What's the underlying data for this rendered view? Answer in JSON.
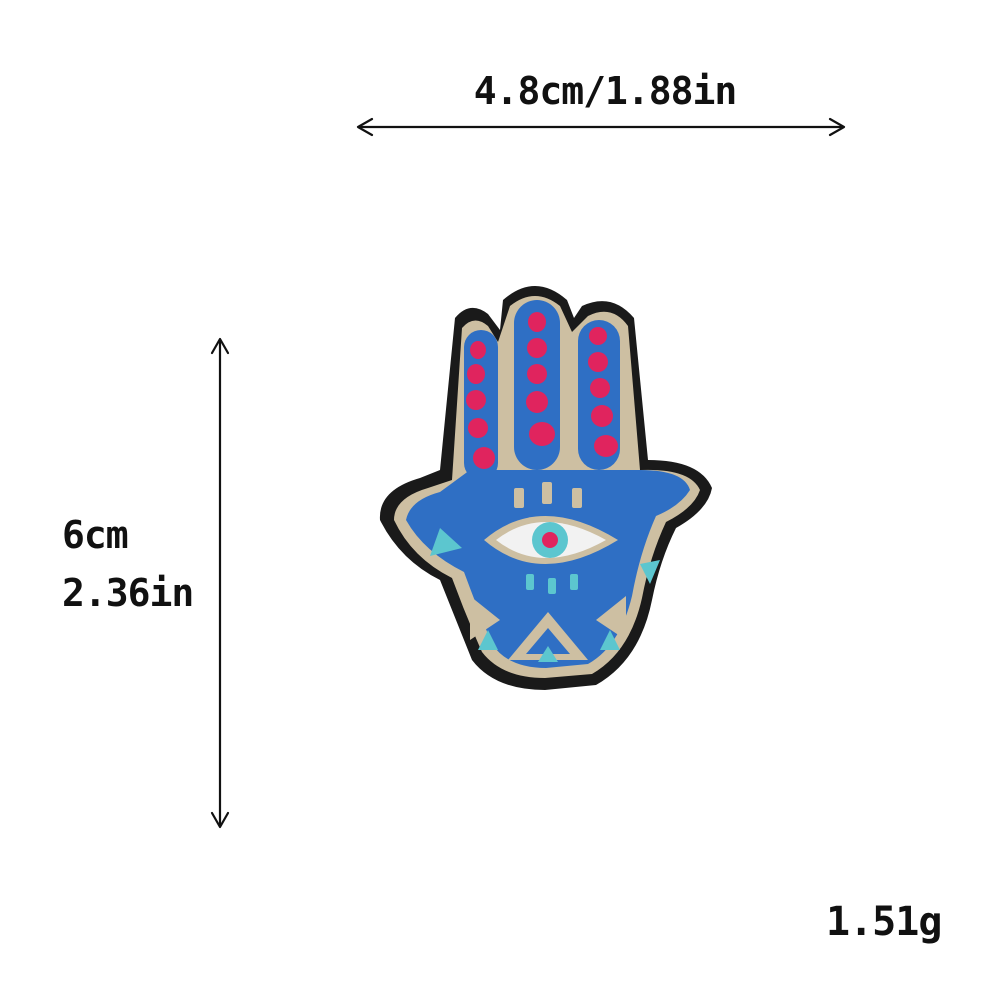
{
  "dimensions": {
    "width_label": "4.8cm/1.88in",
    "height_cm_label": "6cm",
    "height_in_label": "2.36in"
  },
  "weight_label": "1.51g",
  "colors": {
    "background": "#ffffff",
    "text": "#111111",
    "patch_border": "#1a1a1a",
    "patch_stitch": "#cdbfa2",
    "patch_blue": "#2f6fc4",
    "patch_dark_blue": "#1f4fa0",
    "patch_pink": "#e0245e",
    "patch_teal": "#5cc6cf",
    "eye_white": "#f2f2f2"
  },
  "product": {
    "icon": "hamsa-eye-patch-icon"
  }
}
